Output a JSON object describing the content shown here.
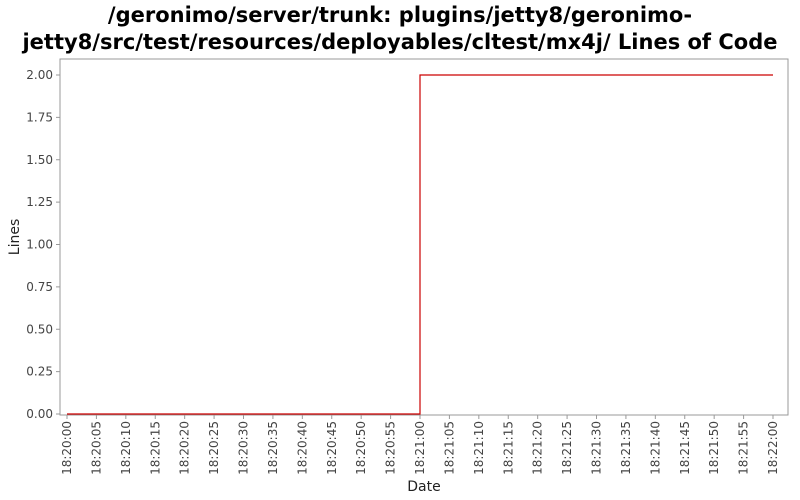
{
  "chart_data": {
    "type": "line",
    "title_line1": "/geronimo/server/trunk: plugins/jetty8/geronimo-",
    "title_line2": "jetty8/src/test/resources/deployables/cltest/mx4j/ Lines of Code",
    "xlabel": "Date",
    "ylabel": "Lines",
    "ylim": [
      0,
      2
    ],
    "y_ticks": [
      "0.00",
      "0.25",
      "0.50",
      "0.75",
      "1.00",
      "1.25",
      "1.50",
      "1.75",
      "2.00"
    ],
    "x_ticks": [
      "18:20:00",
      "18:20:05",
      "18:20:10",
      "18:20:15",
      "18:20:20",
      "18:20:25",
      "18:20:30",
      "18:20:35",
      "18:20:40",
      "18:20:45",
      "18:20:50",
      "18:20:55",
      "18:21:00",
      "18:21:05",
      "18:21:10",
      "18:21:15",
      "18:21:20",
      "18:21:25",
      "18:21:30",
      "18:21:35",
      "18:21:40",
      "18:21:45",
      "18:21:50",
      "18:21:55",
      "18:22:00"
    ],
    "grid": false,
    "step": true,
    "series": [
      {
        "color": "#cc0000",
        "points": [
          {
            "x": "18:20:00",
            "y": 0
          },
          {
            "x": "18:21:00",
            "y": 2
          },
          {
            "x": "18:22:00",
            "y": 2
          }
        ]
      }
    ]
  }
}
